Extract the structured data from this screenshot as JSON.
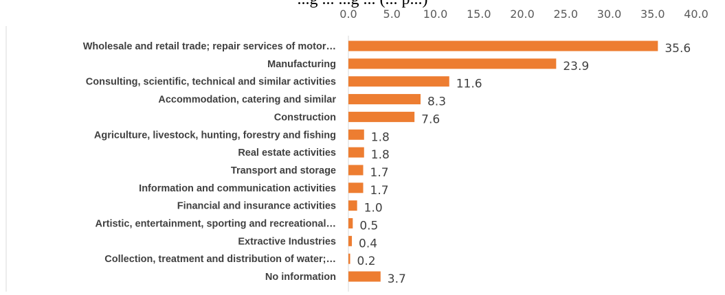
{
  "chart_data": {
    "type": "bar",
    "orientation": "horizontal",
    "title": "...g ... ...g ... (... p...)",
    "categories": [
      "Wholesale and retail trade; repair services of motor…",
      "Manufacturing",
      "Consulting, scientific, technical and similar activities",
      "Accommodation, catering and similar",
      "Construction",
      "Agriculture, livestock, hunting, forestry and fishing",
      "Real estate activities",
      "Transport and storage",
      "Information and communication activities",
      "Financial and insurance activities",
      "Artistic, entertainment, sporting and recreational…",
      "Extractive Industries",
      "Collection, treatment and distribution of water;…",
      "No information"
    ],
    "values": [
      35.6,
      23.9,
      11.6,
      8.3,
      7.6,
      1.8,
      1.8,
      1.7,
      1.7,
      1.0,
      0.5,
      0.4,
      0.2,
      3.7
    ],
    "value_labels": [
      "35.6",
      "23.9",
      "11.6",
      "8.3",
      "7.6",
      "1.8",
      "1.8",
      "1.7",
      "1.7",
      "1.0",
      "0.5",
      "0.4",
      "0.2",
      "3.7"
    ],
    "xlim": [
      0,
      40
    ],
    "xticks": [
      "0.0",
      "5.0",
      "10.0",
      "15.0",
      "20.0",
      "25.0",
      "30.0",
      "35.0",
      "40.0"
    ],
    "axis_position": "top",
    "grid": false,
    "bar_color": "#ED7D31",
    "xlabel": "",
    "ylabel": ""
  }
}
